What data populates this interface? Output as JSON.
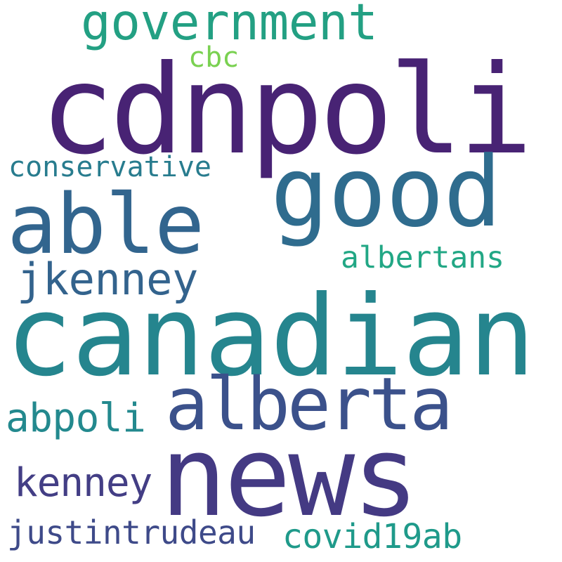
{
  "words": [
    {
      "id": "cdnpoli",
      "text": "cdnpoli",
      "color": "#482374"
    },
    {
      "id": "canadian",
      "text": "canadian",
      "color": "#25858e"
    },
    {
      "id": "news",
      "text": "news",
      "color": "#443a83"
    },
    {
      "id": "good",
      "text": "good",
      "color": "#2f6c8e"
    },
    {
      "id": "able",
      "text": "able",
      "color": "#32658e"
    },
    {
      "id": "alberta",
      "text": "alberta",
      "color": "#3b518b"
    },
    {
      "id": "government",
      "text": "government",
      "color": "#23a083"
    },
    {
      "id": "jkenney",
      "text": "jkenney",
      "color": "#33638d"
    },
    {
      "id": "kenney",
      "text": "kenney",
      "color": "#433e85"
    },
    {
      "id": "abpoli",
      "text": "abpoli",
      "color": "#23898e"
    },
    {
      "id": "justintrudeau",
      "text": "justintrudeau",
      "color": "#3e4a89"
    },
    {
      "id": "covid19ab",
      "text": "covid19ab",
      "color": "#1f9a8a"
    },
    {
      "id": "conservative",
      "text": "conservative",
      "color": "#287c8e"
    },
    {
      "id": "albertans",
      "text": "albertans",
      "color": "#22a785"
    },
    {
      "id": "cbc",
      "text": "cbc",
      "color": "#7ad151"
    }
  ]
}
